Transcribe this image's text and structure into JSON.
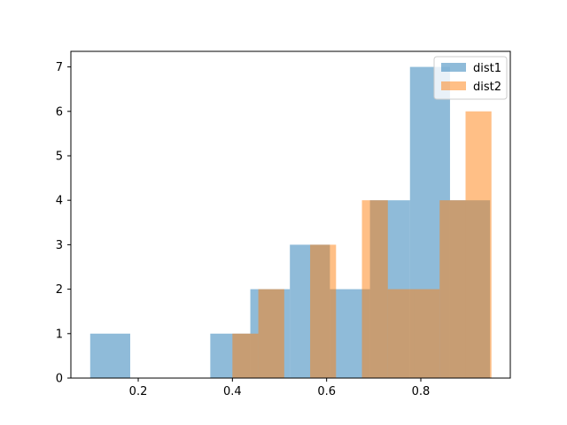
{
  "chart_data": {
    "type": "histogram",
    "title": "",
    "xlabel": "",
    "ylabel": "",
    "xlim": [
      0.057,
      0.99
    ],
    "ylim": [
      0,
      7.35
    ],
    "xticks": [
      0.2,
      0.4,
      0.6,
      0.8
    ],
    "xtick_labels": [
      "0.2",
      "0.4",
      "0.6",
      "0.8"
    ],
    "yticks": [
      0,
      1,
      2,
      3,
      4,
      5,
      6,
      7
    ],
    "ytick_labels": [
      "0",
      "1",
      "2",
      "3",
      "4",
      "5",
      "6",
      "7"
    ],
    "legend_position": "upper right",
    "grid": false,
    "series": [
      {
        "name": "dist1",
        "color": "#1f77b4",
        "alpha": 0.5,
        "bin_edges": [
          0.098,
          0.183,
          0.268,
          0.353,
          0.438,
          0.522,
          0.607,
          0.692,
          0.777,
          0.862,
          0.947
        ],
        "counts": [
          1,
          0,
          0,
          1,
          2,
          3,
          2,
          4,
          7,
          4
        ]
      },
      {
        "name": "dist2",
        "color": "#ff7f0e",
        "alpha": 0.5,
        "bin_edges": [
          0.4,
          0.455,
          0.51,
          0.565,
          0.62,
          0.675,
          0.73,
          0.785,
          0.84,
          0.895,
          0.95
        ],
        "counts": [
          1,
          2,
          0,
          3,
          0,
          4,
          2,
          2,
          4,
          6
        ]
      }
    ]
  }
}
